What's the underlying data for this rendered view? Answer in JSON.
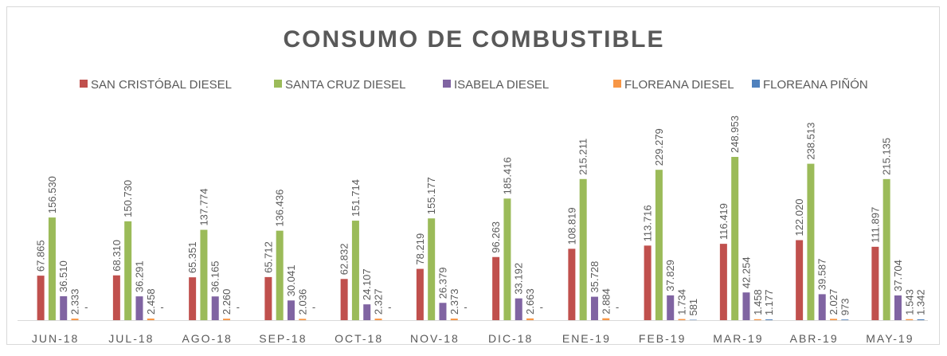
{
  "chart_data": {
    "type": "bar",
    "title": "CONSUMO DE COMBUSTIBLE",
    "categories": [
      "JUN-18",
      "JUL-18",
      "AGO-18",
      "SEP-18",
      "OCT-18",
      "NOV-18",
      "DIC-18",
      "ENE-19",
      "FEB-19",
      "MAR-19",
      "ABR-19",
      "MAY-19"
    ],
    "series": [
      {
        "name": "SAN CRISTÓBAL DIESEL",
        "color": "#c0504d",
        "values": [
          67865,
          68310,
          65351,
          65712,
          62832,
          78219,
          96263,
          108819,
          113716,
          116419,
          122020,
          111897
        ],
        "value_labels": [
          "67.865",
          "68.310",
          "65.351",
          "65.712",
          "62.832",
          "78.219",
          "96.263",
          "108.819",
          "113.716",
          "116.419",
          "122.020",
          "111.897"
        ]
      },
      {
        "name": "SANTA CRUZ DIESEL",
        "color": "#9bbb59",
        "values": [
          156530,
          150730,
          137774,
          136436,
          151714,
          155177,
          185416,
          215211,
          229279,
          248953,
          238513,
          215135
        ],
        "value_labels": [
          "156.530",
          "150.730",
          "137.774",
          "136.436",
          "151.714",
          "155.177",
          "185.416",
          "215.211",
          "229.279",
          "248.953",
          "238.513",
          "215.135"
        ]
      },
      {
        "name": "ISABELA DIESEL",
        "color": "#8064a2",
        "values": [
          36510,
          36291,
          36165,
          30041,
          24107,
          26379,
          33192,
          35728,
          37829,
          42254,
          39587,
          37704
        ],
        "value_labels": [
          "36.510",
          "36.291",
          "36.165",
          "30.041",
          "24.107",
          "26.379",
          "33.192",
          "35.728",
          "37.829",
          "42.254",
          "39.587",
          "37.704"
        ]
      },
      {
        "name": "FLOREANA DIESEL",
        "color": "#f79646",
        "values": [
          2333,
          2458,
          2260,
          2036,
          2327,
          2373,
          2663,
          2884,
          1734,
          1458,
          2027,
          1543
        ],
        "value_labels": [
          "2.333",
          "2.458",
          "2.260",
          "2.036",
          "2.327",
          "2.373",
          "2.663",
          "2.884",
          "1.734",
          "1.458",
          "2.027",
          "1.543"
        ]
      },
      {
        "name": "FLOREANA PIÑÓN",
        "color": "#4f81bd",
        "values": [
          0,
          0,
          0,
          0,
          0,
          0,
          0,
          0,
          581,
          1177,
          973,
          1342
        ],
        "value_labels": [
          "-",
          "-",
          "-",
          "-",
          "-",
          "-",
          "-",
          "-",
          "581",
          "1.177",
          "973",
          "1.342"
        ]
      }
    ],
    "legend": "top"
  }
}
